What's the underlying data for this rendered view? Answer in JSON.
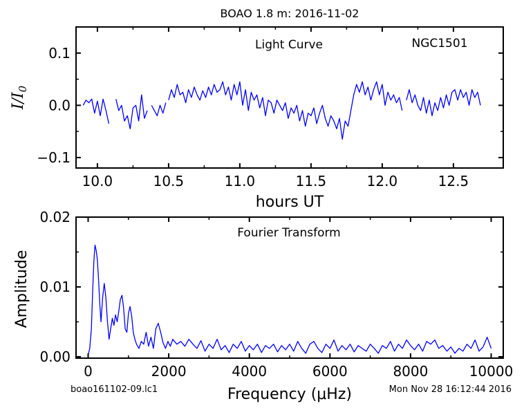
{
  "figure": {
    "suptitle": "BOAO 1.8 m:  2016-11-02",
    "footer_left": "boao161102-09.lc1",
    "footer_right": "Mon Nov 28 16:12:44 2016"
  },
  "chart_data": [
    {
      "type": "line",
      "title": "Light Curve",
      "annotation": "NGC1501",
      "xlabel": "hours UT",
      "ylabel": "I/I0",
      "xlim": [
        9.85,
        12.85
      ],
      "ylim": [
        -0.12,
        0.15
      ],
      "xticks": [
        10.0,
        10.5,
        11.0,
        11.5,
        12.0,
        12.5
      ],
      "xtick_labels": [
        "10.0",
        "10.5",
        "11.0",
        "11.5",
        "12.0",
        "12.5"
      ],
      "yticks": [
        -0.1,
        0.0,
        0.1
      ],
      "ytick_labels": [
        "−0.1",
        "0.0",
        "0.1"
      ],
      "color": "#0000ff",
      "segments": [
        {
          "x": [
            9.9,
            9.92,
            9.94,
            9.96,
            9.98,
            10.0,
            10.02,
            10.04,
            10.06,
            10.08
          ],
          "y": [
            0.0,
            0.01,
            0.005,
            0.012,
            -0.015,
            0.008,
            -0.02,
            0.012,
            -0.01,
            -0.035
          ]
        },
        {
          "x": [
            10.13,
            10.15,
            10.17,
            10.19,
            10.21,
            10.23,
            10.25,
            10.27,
            10.29,
            10.31,
            10.33,
            10.35
          ],
          "y": [
            0.012,
            -0.01,
            0.0,
            -0.03,
            -0.02,
            -0.045,
            -0.005,
            0.0,
            -0.03,
            0.02,
            -0.025,
            -0.01
          ]
        },
        {
          "x": [
            10.38,
            10.4,
            10.42,
            10.44,
            10.46,
            10.48
          ],
          "y": [
            0.0,
            -0.01,
            -0.02,
            0.0,
            -0.015,
            0.005
          ]
        },
        {
          "x": [
            10.5,
            10.52,
            10.54,
            10.56,
            10.58,
            10.6,
            10.62,
            10.64,
            10.66,
            10.68,
            10.7,
            10.72,
            10.74,
            10.76,
            10.78,
            10.8,
            10.82,
            10.84,
            10.86,
            10.88,
            10.9,
            10.92,
            10.94,
            10.96,
            10.98,
            11.0,
            11.02,
            11.04,
            11.06,
            11.08,
            11.1,
            11.12,
            11.14,
            11.16,
            11.18,
            11.2,
            11.22,
            11.24,
            11.26,
            11.28,
            11.3,
            11.32,
            11.34,
            11.36,
            11.38,
            11.4,
            11.42,
            11.44,
            11.46,
            11.48,
            11.5,
            11.52,
            11.54,
            11.56,
            11.58,
            11.6,
            11.62,
            11.64,
            11.66,
            11.68,
            11.7,
            11.72,
            11.74,
            11.76,
            11.78,
            11.8,
            11.82,
            11.84,
            11.86,
            11.88,
            11.9,
            11.92,
            11.94,
            11.96,
            11.98,
            12.0,
            12.02,
            12.04,
            12.06,
            12.08,
            12.1,
            12.12,
            12.14
          ],
          "y": [
            0.01,
            0.03,
            0.015,
            0.04,
            0.02,
            0.025,
            0.005,
            0.03,
            0.015,
            0.035,
            0.02,
            0.01,
            0.028,
            0.015,
            0.035,
            0.02,
            0.04,
            0.025,
            0.03,
            0.045,
            0.02,
            0.035,
            0.01,
            0.04,
            0.02,
            0.045,
            0.0,
            0.03,
            -0.01,
            0.025,
            0.01,
            0.02,
            -0.005,
            0.015,
            -0.02,
            0.01,
            0.005,
            -0.015,
            0.01,
            0.0,
            -0.01,
            0.005,
            -0.025,
            -0.005,
            -0.015,
            0.0,
            -0.03,
            -0.01,
            -0.04,
            -0.015,
            -0.02,
            -0.005,
            -0.035,
            -0.015,
            0.0,
            -0.025,
            -0.04,
            -0.02,
            -0.03,
            -0.045,
            -0.025,
            -0.065,
            -0.03,
            -0.04,
            -0.01,
            0.02,
            0.04,
            0.025,
            0.045,
            0.02,
            0.035,
            0.01,
            0.03,
            0.045,
            0.02,
            0.04,
            0.0,
            0.025,
            0.01,
            0.02,
            0.005,
            0.015,
            -0.01
          ]
        },
        {
          "x": [
            12.17,
            12.19,
            12.21,
            12.23,
            12.25,
            12.27,
            12.29,
            12.31,
            12.33,
            12.35,
            12.37,
            12.39,
            12.41,
            12.43,
            12.45,
            12.47,
            12.49,
            12.51,
            12.53,
            12.55,
            12.57,
            12.59,
            12.61,
            12.63,
            12.65,
            12.67,
            12.69
          ],
          "y": [
            0.01,
            0.03,
            0.005,
            0.02,
            0.0,
            -0.01,
            0.015,
            -0.015,
            0.01,
            -0.02,
            0.005,
            -0.01,
            0.015,
            -0.005,
            0.02,
            0.0,
            0.025,
            0.03,
            0.01,
            0.03,
            0.015,
            0.025,
            0.0,
            0.03,
            0.015,
            0.025,
            0.0
          ]
        }
      ]
    },
    {
      "type": "line",
      "title": "Fourier Transform",
      "xlabel": "Frequency (μHz)",
      "ylabel": "Amplitude",
      "xlim": [
        -300,
        10300
      ],
      "ylim": [
        -0.0002,
        0.02
      ],
      "xticks": [
        0,
        2000,
        4000,
        6000,
        8000,
        10000
      ],
      "xtick_labels": [
        "0",
        "2000",
        "4000",
        "6000",
        "8000",
        "10000"
      ],
      "yticks": [
        0.0,
        0.01,
        0.02
      ],
      "ytick_labels": [
        "0.00",
        "0.01",
        "0.02"
      ],
      "color": "#0000ff",
      "series": [
        {
          "x": [
            0,
            40,
            80,
            110,
            140,
            170,
            200,
            230,
            260,
            290,
            320,
            360,
            400,
            440,
            480,
            520,
            560,
            600,
            640,
            680,
            720,
            760,
            800,
            840,
            880,
            920,
            960,
            1000,
            1040,
            1080,
            1120,
            1160,
            1200,
            1260,
            1320,
            1380,
            1440,
            1500,
            1560,
            1620,
            1680,
            1740,
            1800,
            1860,
            1920,
            1980,
            2040,
            2100,
            2200,
            2300,
            2400,
            2500,
            2600,
            2700,
            2800,
            2900,
            3000,
            3100,
            3200,
            3300,
            3400,
            3500,
            3600,
            3700,
            3800,
            3900,
            4000,
            4100,
            4200,
            4300,
            4400,
            4500,
            4600,
            4700,
            4800,
            4900,
            5000,
            5100,
            5200,
            5300,
            5400,
            5500,
            5600,
            5700,
            5800,
            5900,
            6000,
            6100,
            6200,
            6300,
            6400,
            6500,
            6600,
            6700,
            6800,
            6900,
            7000,
            7100,
            7200,
            7300,
            7400,
            7500,
            7600,
            7700,
            7800,
            7900,
            8000,
            8100,
            8200,
            8300,
            8400,
            8500,
            8600,
            8700,
            8800,
            8900,
            9000,
            9100,
            9200,
            9300,
            9400,
            9500,
            9600,
            9700,
            9800,
            9900,
            10000
          ],
          "y": [
            0.0002,
            0.0012,
            0.004,
            0.009,
            0.0135,
            0.016,
            0.0152,
            0.0138,
            0.011,
            0.0075,
            0.005,
            0.0085,
            0.0105,
            0.0085,
            0.005,
            0.0025,
            0.004,
            0.0055,
            0.0045,
            0.006,
            0.005,
            0.0065,
            0.0082,
            0.0088,
            0.007,
            0.004,
            0.0035,
            0.0062,
            0.0072,
            0.0058,
            0.0035,
            0.0025,
            0.0018,
            0.0012,
            0.0022,
            0.0018,
            0.0035,
            0.0015,
            0.0028,
            0.0012,
            0.004,
            0.0048,
            0.0035,
            0.002,
            0.0012,
            0.0022,
            0.0015,
            0.0025,
            0.0018,
            0.0022,
            0.0015,
            0.0025,
            0.0018,
            0.0012,
            0.0023,
            0.0008,
            0.0018,
            0.0012,
            0.0025,
            0.001,
            0.0016,
            0.0006,
            0.0018,
            0.0012,
            0.0022,
            0.0008,
            0.0016,
            0.001,
            0.0018,
            0.0006,
            0.0016,
            0.0012,
            0.0018,
            0.0007,
            0.0016,
            0.001,
            0.0018,
            0.0008,
            0.0022,
            0.0012,
            0.0005,
            0.0018,
            0.0022,
            0.0012,
            0.0006,
            0.0018,
            0.0012,
            0.0024,
            0.0008,
            0.0016,
            0.001,
            0.0018,
            0.0007,
            0.0016,
            0.0012,
            0.0008,
            0.0018,
            0.0012,
            0.0005,
            0.0016,
            0.0012,
            0.0022,
            0.0008,
            0.0018,
            0.0012,
            0.0024,
            0.0016,
            0.001,
            0.0018,
            0.0008,
            0.0022,
            0.0018,
            0.0024,
            0.0012,
            0.0016,
            0.0008,
            0.0014,
            0.0005,
            0.0012,
            0.0008,
            0.0018,
            0.0012,
            0.0024,
            0.0008,
            0.0014,
            0.0028,
            0.0012
          ]
        }
      ]
    }
  ]
}
